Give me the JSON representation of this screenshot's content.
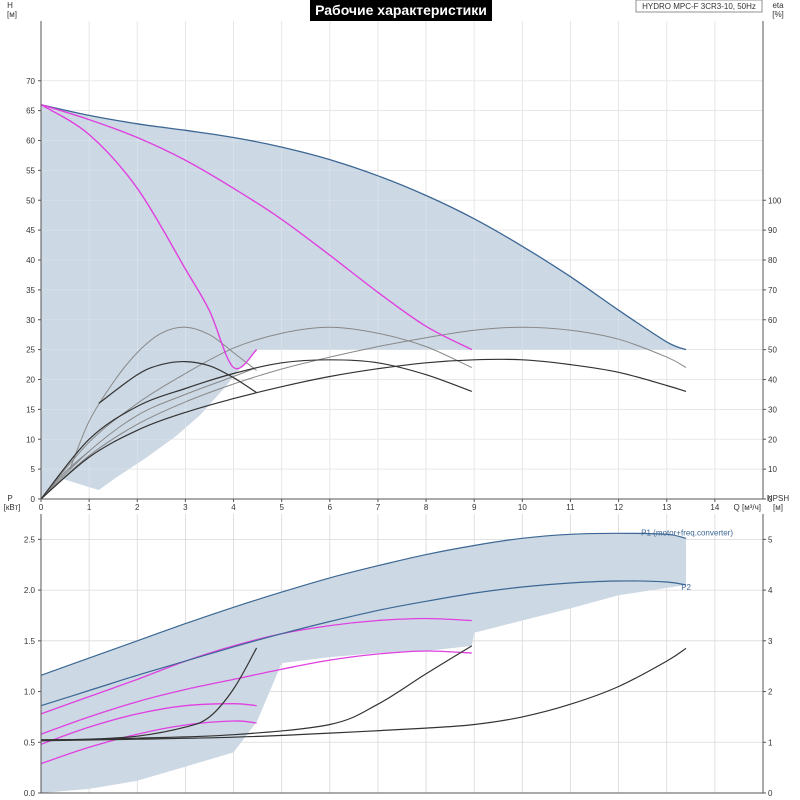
{
  "title": "Рабочие характеристики",
  "model": "HYDRO MPC-F 3CR3-10, 50Hz",
  "colors": {
    "region_fill": "#ccd8e4",
    "envelope": "#3c6794",
    "speed_curve": "#e040e0",
    "eta_curve": "#888888",
    "npsh_curve": "#333333",
    "grid": "#d9d9d9",
    "axis": "#555555"
  },
  "chart_data": [
    {
      "type": "line",
      "name": "performance",
      "xlabel": "Q [м³/ч]",
      "ylabel_left": "H\n[м]",
      "ylabel_right": "eta\n[%]",
      "xlim": [
        0,
        15
      ],
      "ylim_left": [
        0,
        80
      ],
      "ylim_right": [
        0,
        160
      ],
      "x_ticks": [
        "0",
        "1",
        "2",
        "3",
        "4",
        "5",
        "6",
        "7",
        "8",
        "9",
        "10",
        "11",
        "12",
        "13",
        "14"
      ],
      "y_ticks_left": [
        "0",
        "5",
        "10",
        "15",
        "20",
        "25",
        "30",
        "35",
        "40",
        "45",
        "50",
        "55",
        "60",
        "65",
        "70"
      ],
      "y_ticks_right": [
        "0",
        "10",
        "20",
        "30",
        "40",
        "50",
        "60",
        "70",
        "80",
        "90",
        "100"
      ],
      "grid": true,
      "envelope_outer": {
        "x": [
          0,
          1,
          2,
          3,
          4,
          5,
          6,
          7,
          8,
          9,
          10,
          11,
          12,
          13,
          13.4
        ],
        "y": [
          66,
          64.2,
          62.8,
          61.7,
          60.5,
          58.9,
          56.8,
          54.1,
          50.8,
          46.9,
          42.3,
          37.2,
          31.6,
          26.3,
          25
        ]
      },
      "envelope_bottom": {
        "x": [
          0,
          0.4,
          0.8,
          1.2,
          1.6,
          2.2,
          2.8,
          3.3,
          3.8,
          4.2,
          4.5
        ],
        "y": [
          0,
          3.5,
          2.5,
          1.5,
          3.8,
          7.0,
          10.5,
          14,
          18.5,
          22.5,
          25
        ]
      },
      "envelope_min_head": 25,
      "speed_curves": [
        {
          "x": [
            0,
            1,
            2,
            3,
            3.5,
            4,
            4.48
          ],
          "y": [
            66,
            61,
            52,
            38.5,
            31.5,
            22,
            25
          ]
        },
        {
          "x": [
            0,
            1,
            2,
            3,
            4,
            5,
            6,
            7,
            8,
            8.95
          ],
          "y": [
            66,
            63.5,
            60.5,
            56.7,
            52,
            46.8,
            40.8,
            34.6,
            28.9,
            25
          ]
        }
      ],
      "speed_curve_ends": [
        {
          "x": [
            0,
            1,
            2,
            3,
            3.5,
            4,
            4.48
          ],
          "y": [
            66,
            61.2,
            52.8,
            40.2,
            33.5,
            28,
            25
          ]
        }
      ],
      "eta_curves": [
        {
          "x": [
            0.6,
            1,
            1.5,
            2,
            2.5,
            3,
            3.5,
            4,
            4.48
          ],
          "y": [
            10,
            26,
            39,
            49,
            55.5,
            57.5,
            55,
            49,
            43
          ]
        },
        {
          "x": [
            0,
            1,
            2,
            3,
            4,
            5,
            6,
            7,
            8,
            8.95
          ],
          "y": [
            0,
            19,
            32,
            42,
            50.5,
            55.5,
            57.5,
            55.5,
            51,
            44
          ]
        },
        {
          "x": [
            0,
            1,
            2,
            3,
            4,
            5,
            6,
            7,
            8,
            9,
            10,
            11,
            12,
            13,
            13.4
          ],
          "y": [
            0,
            14.5,
            25,
            32.5,
            38.5,
            43.5,
            47.5,
            51,
            54,
            56.5,
            57.5,
            56.5,
            53.5,
            47.5,
            44
          ]
        },
        {
          "x": [
            0,
            1,
            2,
            3,
            4,
            4.48
          ],
          "y": [
            0,
            16,
            28,
            35,
            41,
            44
          ]
        },
        {
          "x": [
            0,
            0.5,
            1
          ],
          "y": [
            0,
            9,
            16
          ]
        }
      ],
      "head_curves": [
        {
          "x": [
            1.2,
            2,
            2.5,
            3,
            3.5,
            4,
            4.48
          ],
          "y": [
            16,
            20.8,
            22.5,
            23,
            22.3,
            20.3,
            17.8
          ]
        },
        {
          "x": [
            0,
            1,
            2,
            3,
            4,
            5,
            6,
            7,
            8,
            8.95
          ],
          "y": [
            0,
            10,
            15.5,
            18.5,
            21,
            22.8,
            23.3,
            22.8,
            20.8,
            18
          ]
        },
        {
          "x": [
            0,
            1,
            2,
            3,
            4,
            5,
            6,
            7,
            8,
            9,
            10,
            11,
            12,
            13,
            13.4
          ],
          "y": [
            0,
            7,
            11.5,
            14.5,
            16.8,
            18.8,
            20.5,
            21.8,
            22.8,
            23.3,
            23.3,
            22.5,
            21.2,
            19,
            18
          ]
        }
      ]
    },
    {
      "type": "line",
      "name": "power-npsh",
      "xlabel": "",
      "ylabel_left": "P\n[кВт]",
      "ylabel_right": "NPSH\n[м]",
      "xlim": [
        0,
        15
      ],
      "ylim_left": [
        0,
        2.75
      ],
      "ylim_right": [
        0,
        5.5
      ],
      "y_ticks_left": [
        "0.0",
        "0.5",
        "1.0",
        "1.5",
        "2.0",
        "2.5"
      ],
      "y_ticks_right": [
        "0",
        "1",
        "2",
        "3",
        "4",
        "5"
      ],
      "grid": true,
      "series": [
        {
          "name": "P1 (motor+freq.converter)",
          "x": [
            0,
            1,
            2,
            3,
            4,
            5,
            6,
            7,
            8,
            9,
            10,
            11,
            12,
            13,
            13.4
          ],
          "y": [
            1.16,
            1.33,
            1.5,
            1.67,
            1.83,
            1.98,
            2.12,
            2.24,
            2.35,
            2.44,
            2.51,
            2.55,
            2.56,
            2.55,
            2.51
          ]
        },
        {
          "name": "P2",
          "x": [
            0,
            1,
            2,
            3,
            4,
            5,
            6,
            7,
            8,
            9,
            10,
            11,
            12,
            13,
            13.4
          ],
          "y": [
            0.86,
            1.01,
            1.16,
            1.3,
            1.44,
            1.57,
            1.69,
            1.8,
            1.89,
            1.97,
            2.03,
            2.07,
            2.09,
            2.08,
            2.05
          ]
        }
      ],
      "speed_power_curves": [
        {
          "x": [
            0,
            1,
            2,
            3,
            4,
            5,
            6,
            7,
            8,
            8.95
          ],
          "y": [
            0.78,
            0.95,
            1.12,
            1.3,
            1.45,
            1.57,
            1.65,
            1.7,
            1.72,
            1.7
          ]
        },
        {
          "x": [
            0,
            1,
            2,
            3,
            4,
            5,
            6,
            7,
            8,
            8.95
          ],
          "y": [
            0.58,
            0.75,
            0.9,
            1.02,
            1.12,
            1.22,
            1.31,
            1.37,
            1.4,
            1.38
          ]
        },
        {
          "x": [
            0,
            1,
            2,
            3,
            4,
            4.48
          ],
          "y": [
            0.48,
            0.65,
            0.78,
            0.86,
            0.88,
            0.86
          ]
        },
        {
          "x": [
            0,
            1,
            2,
            3,
            4,
            4.48
          ],
          "y": [
            0.29,
            0.45,
            0.58,
            0.67,
            0.71,
            0.69
          ]
        }
      ],
      "npsh_curves": [
        {
          "x": [
            0,
            1,
            2,
            3,
            3.5,
            4,
            4.48
          ],
          "y": [
            1.05,
            1.06,
            1.12,
            1.3,
            1.5,
            2.05,
            2.86
          ]
        },
        {
          "x": [
            0,
            2,
            4,
            6,
            7,
            8,
            8.95
          ],
          "y": [
            1.04,
            1.08,
            1.15,
            1.35,
            1.75,
            2.35,
            2.9
          ]
        },
        {
          "x": [
            0,
            2,
            4,
            6,
            8,
            9,
            10,
            11,
            12,
            13,
            13.4
          ],
          "y": [
            1.03,
            1.06,
            1.1,
            1.18,
            1.28,
            1.35,
            1.5,
            1.75,
            2.1,
            2.6,
            2.85
          ]
        }
      ],
      "region_upper": {
        "x": [
          0,
          1,
          2,
          3,
          4,
          5,
          6,
          7,
          8,
          9,
          10,
          11,
          12,
          13,
          13.4
        ],
        "y": [
          1.16,
          1.33,
          1.5,
          1.67,
          1.83,
          1.98,
          2.12,
          2.24,
          2.35,
          2.44,
          2.51,
          2.55,
          2.56,
          2.55,
          2.51
        ]
      },
      "region_lower": {
        "x": [
          13.4,
          12,
          11,
          10,
          9,
          8.95,
          8,
          7,
          6,
          5,
          4.5,
          4.48,
          4,
          3,
          2,
          1,
          0
        ],
        "y": [
          2.05,
          1.95,
          1.82,
          1.7,
          1.58,
          1.45,
          1.4,
          1.38,
          1.34,
          1.28,
          0.72,
          0.7,
          0.4,
          0.26,
          0.12,
          0.04,
          0
        ]
      }
    }
  ]
}
